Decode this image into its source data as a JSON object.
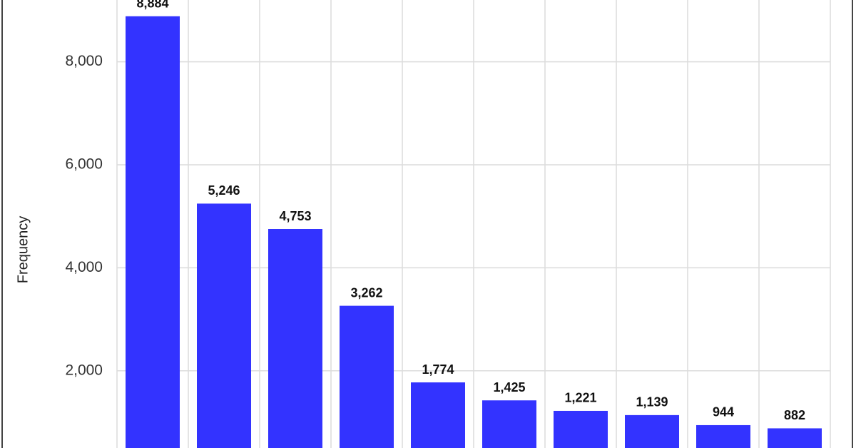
{
  "chart_data": {
    "type": "bar",
    "y_label": "Frequency",
    "categories": [
      null,
      null,
      null,
      null,
      null,
      null,
      null,
      null,
      null,
      null
    ],
    "values": [
      8884,
      5246,
      4753,
      3262,
      1774,
      1425,
      1221,
      1139,
      944,
      882
    ],
    "value_labels": [
      "8,884",
      "5,246",
      "4,753",
      "3,262",
      "1,774",
      "1,425",
      "1,221",
      "1,139",
      "944",
      "882"
    ],
    "color": "#3333ff",
    "ylim": [
      500,
      9200
    ],
    "yticks": [
      {
        "value": 2000,
        "label": "2,000"
      },
      {
        "value": 4000,
        "label": "4,000"
      },
      {
        "value": 6000,
        "label": "6,000"
      },
      {
        "value": 8000,
        "label": "8,000"
      }
    ],
    "grid": true
  }
}
